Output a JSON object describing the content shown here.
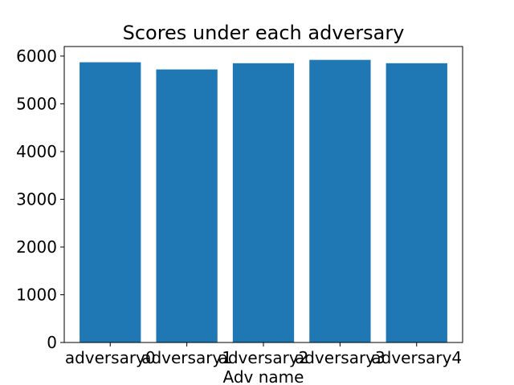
{
  "chart_data": {
    "type": "bar",
    "title": "Scores under each adversary",
    "xlabel": "Adv name",
    "ylabel": "",
    "categories": [
      "adversary0",
      "adversary1",
      "adversary2",
      "adversary3",
      "adversary4"
    ],
    "values": [
      5870,
      5720,
      5850,
      5920,
      5850
    ],
    "ylim": [
      0,
      6200
    ],
    "yticks": [
      0,
      1000,
      2000,
      3000,
      4000,
      5000,
      6000
    ],
    "bar_color": "#1f77b4",
    "grid": false,
    "legend": "none"
  }
}
